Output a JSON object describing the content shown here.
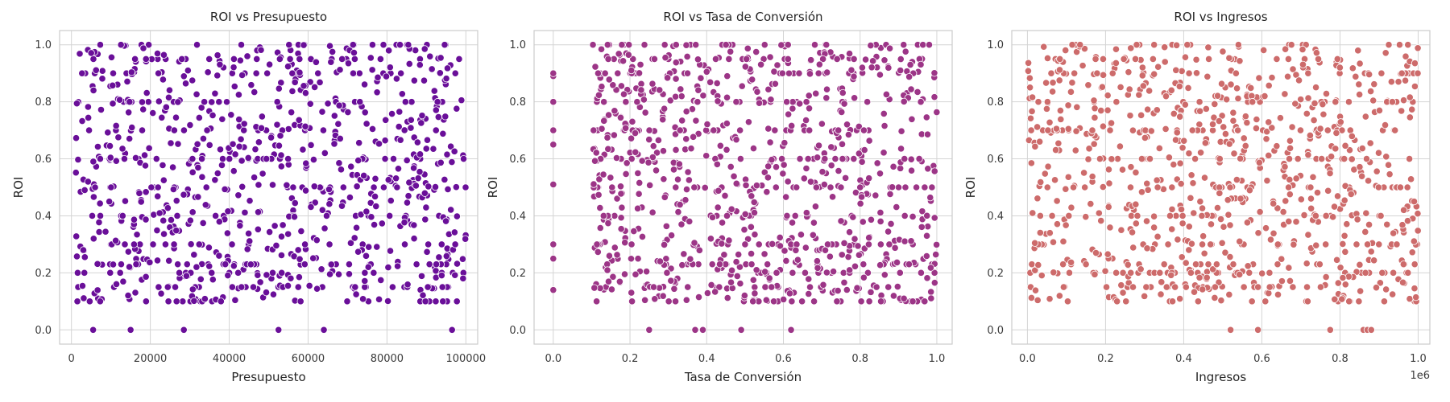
{
  "chart_data": [
    {
      "type": "scatter",
      "title": "ROI vs Presupuesto",
      "xlabel": "Presupuesto",
      "ylabel": "ROI",
      "xlim": [
        -3000,
        103000
      ],
      "ylim": [
        -0.05,
        1.05
      ],
      "xticks": [
        0,
        20000,
        40000,
        60000,
        80000,
        100000
      ],
      "xtick_labels": [
        "0",
        "20000",
        "40000",
        "60000",
        "80000",
        "100000"
      ],
      "yticks": [
        0.0,
        0.2,
        0.4,
        0.6,
        0.8,
        1.0
      ],
      "ytick_labels": [
        "0.0",
        "0.2",
        "0.4",
        "0.6",
        "0.8",
        "1.0"
      ],
      "x_offset_label": "",
      "color": "#6a0f99",
      "x_min": 1000,
      "x_max": 100000,
      "n_points": 900,
      "seed": 11,
      "zero_roi_x": [
        5500,
        15000,
        28500,
        52500,
        64000,
        96500
      ]
    },
    {
      "type": "scatter",
      "title": "ROI vs Tasa de Conversión",
      "xlabel": "Tasa de Conversión",
      "ylabel": "ROI",
      "xlim": [
        -0.05,
        1.04
      ],
      "ylim": [
        -0.05,
        1.05
      ],
      "xticks": [
        0.0,
        0.2,
        0.4,
        0.6,
        0.8,
        1.0
      ],
      "xtick_labels": [
        "0.0",
        "0.2",
        "0.4",
        "0.6",
        "0.8",
        "1.0"
      ],
      "yticks": [
        0.0,
        0.2,
        0.4,
        0.6,
        0.8,
        1.0
      ],
      "ytick_labels": [
        "0.0",
        "0.2",
        "0.4",
        "0.6",
        "0.8",
        "1.0"
      ],
      "x_offset_label": "",
      "color": "#9c3587",
      "x_min": 0.1,
      "x_max": 1.0,
      "n_points": 900,
      "seed": 23,
      "zero_roi_x": [
        0.25,
        0.37,
        0.39,
        0.49,
        0.62
      ],
      "zero_x_roi": [
        0.14,
        0.25,
        0.3,
        0.51,
        0.65,
        0.7,
        0.8,
        0.89,
        0.9
      ]
    },
    {
      "type": "scatter",
      "title": "ROI vs Ingresos",
      "xlabel": "Ingresos",
      "ylabel": "ROI",
      "xlim": [
        -40000,
        1030000
      ],
      "ylim": [
        -0.05,
        1.05
      ],
      "xticks": [
        0.0,
        200000,
        400000,
        600000,
        800000,
        1000000
      ],
      "xtick_labels": [
        "0.0",
        "0.2",
        "0.4",
        "0.6",
        "0.8",
        "1.0"
      ],
      "yticks": [
        0.0,
        0.2,
        0.4,
        0.6,
        0.8,
        1.0
      ],
      "ytick_labels": [
        "0.0",
        "0.2",
        "0.4",
        "0.6",
        "0.8",
        "1.0"
      ],
      "x_offset_label": "1e6",
      "color": "#cd6b6b",
      "x_min": 0,
      "x_max": 1000000,
      "n_points": 900,
      "seed": 37,
      "zero_roi_x": [
        520000,
        590000,
        775000,
        860000,
        870000,
        880000
      ]
    }
  ]
}
